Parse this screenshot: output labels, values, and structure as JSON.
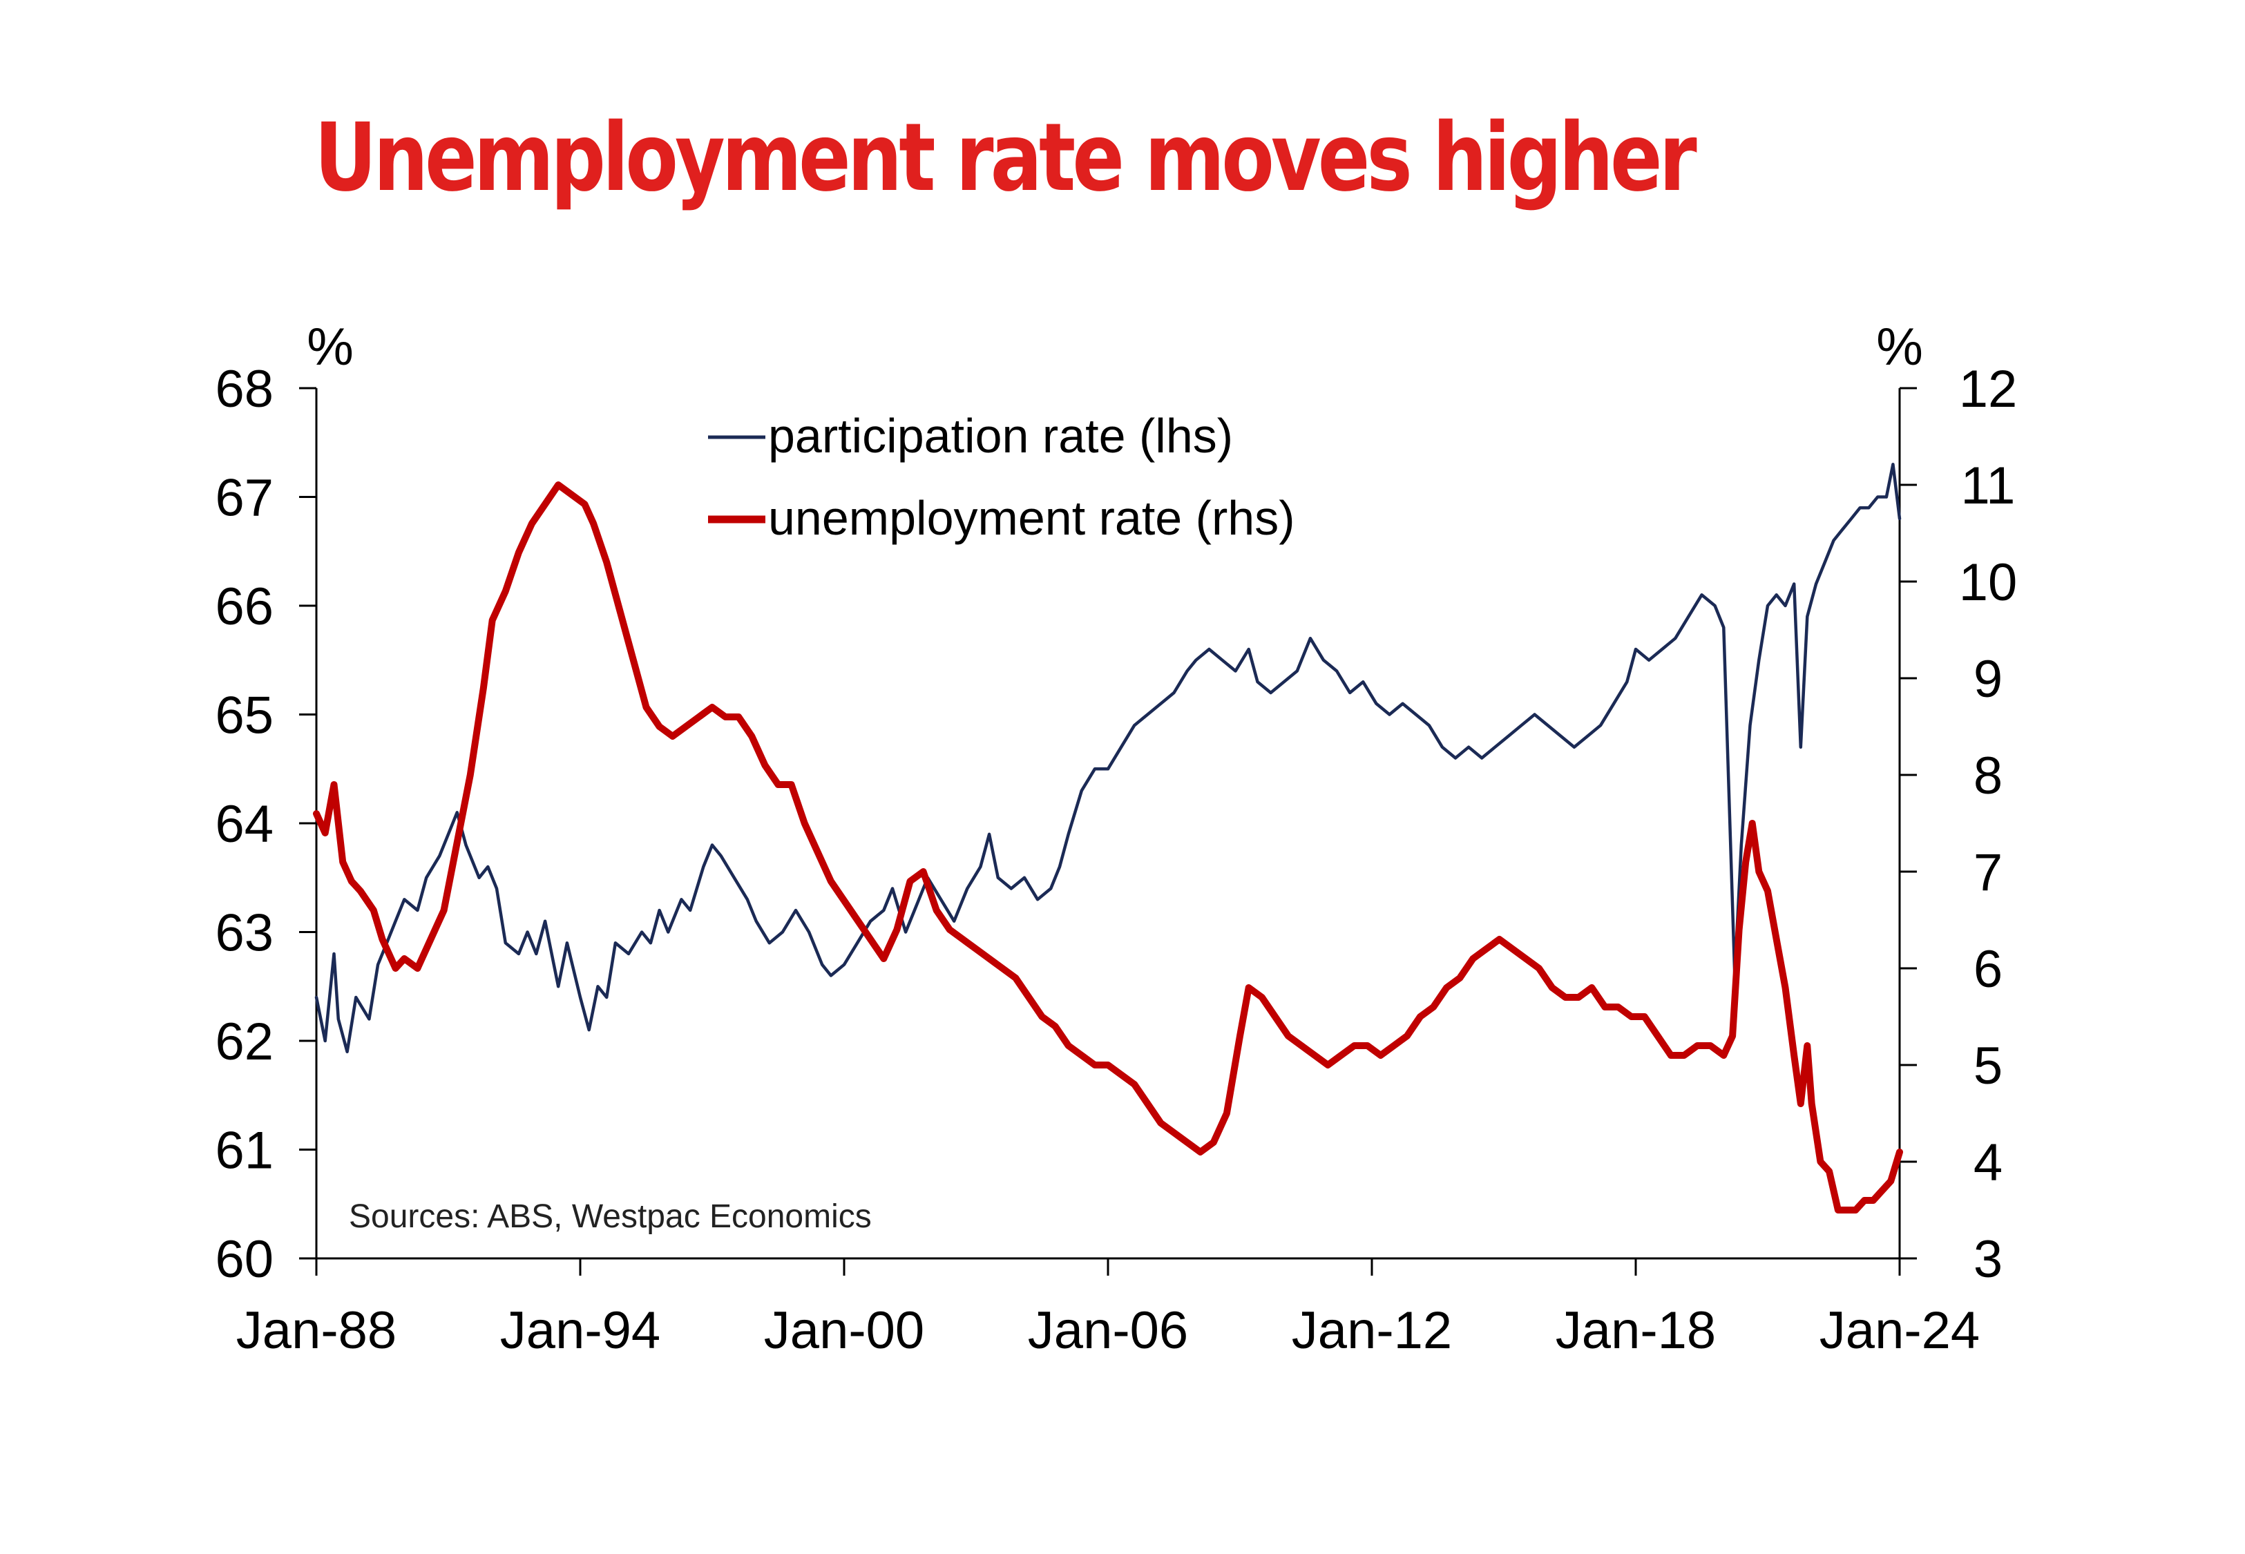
{
  "chart_data": {
    "type": "line",
    "title": "Unemployment rate moves higher",
    "left_axis_unit": "%",
    "right_axis_unit": "%",
    "x_ticks": [
      "Jan-88",
      "Jan-94",
      "Jan-00",
      "Jan-06",
      "Jan-12",
      "Jan-18",
      "Jan-24"
    ],
    "x_range": [
      1988.0,
      2024.0
    ],
    "ylim_left": [
      60,
      68
    ],
    "ylim_right": [
      3,
      12
    ],
    "y_ticks_left": [
      "60",
      "61",
      "62",
      "63",
      "64",
      "65",
      "66",
      "67",
      "68"
    ],
    "y_ticks_right": [
      "3",
      "4",
      "5",
      "6",
      "7",
      "8",
      "9",
      "10",
      "11",
      "12"
    ],
    "legend_position": "top-center",
    "source": "Sources: ABS, Westpac Economics",
    "series": [
      {
        "name": "participation rate (lhs)",
        "axis": "left",
        "color": "#1b2a55",
        "points": [
          [
            1988.0,
            62.4
          ],
          [
            1988.2,
            62.0
          ],
          [
            1988.4,
            62.8
          ],
          [
            1988.5,
            62.2
          ],
          [
            1988.7,
            61.9
          ],
          [
            1988.9,
            62.4
          ],
          [
            1989.2,
            62.2
          ],
          [
            1989.4,
            62.7
          ],
          [
            1989.6,
            62.9
          ],
          [
            1989.8,
            63.1
          ],
          [
            1990.0,
            63.3
          ],
          [
            1990.3,
            63.2
          ],
          [
            1990.5,
            63.5
          ],
          [
            1990.8,
            63.7
          ],
          [
            1991.0,
            63.9
          ],
          [
            1991.2,
            64.1
          ],
          [
            1991.4,
            63.8
          ],
          [
            1991.7,
            63.5
          ],
          [
            1991.9,
            63.6
          ],
          [
            1992.1,
            63.4
          ],
          [
            1992.3,
            62.9
          ],
          [
            1992.6,
            62.8
          ],
          [
            1992.8,
            63.0
          ],
          [
            1993.0,
            62.8
          ],
          [
            1993.2,
            63.1
          ],
          [
            1993.5,
            62.5
          ],
          [
            1993.7,
            62.9
          ],
          [
            1994.0,
            62.4
          ],
          [
            1994.2,
            62.1
          ],
          [
            1994.4,
            62.5
          ],
          [
            1994.6,
            62.4
          ],
          [
            1994.8,
            62.9
          ],
          [
            1995.1,
            62.8
          ],
          [
            1995.4,
            63.0
          ],
          [
            1995.6,
            62.9
          ],
          [
            1995.8,
            63.2
          ],
          [
            1996.0,
            63.0
          ],
          [
            1996.3,
            63.3
          ],
          [
            1996.5,
            63.2
          ],
          [
            1996.8,
            63.6
          ],
          [
            1997.0,
            63.8
          ],
          [
            1997.2,
            63.7
          ],
          [
            1997.5,
            63.5
          ],
          [
            1997.8,
            63.3
          ],
          [
            1998.0,
            63.1
          ],
          [
            1998.3,
            62.9
          ],
          [
            1998.6,
            63.0
          ],
          [
            1998.9,
            63.2
          ],
          [
            1999.2,
            63.0
          ],
          [
            1999.5,
            62.7
          ],
          [
            1999.7,
            62.6
          ],
          [
            2000.0,
            62.7
          ],
          [
            2000.3,
            62.9
          ],
          [
            2000.6,
            63.1
          ],
          [
            2000.9,
            63.2
          ],
          [
            2001.1,
            63.4
          ],
          [
            2001.4,
            63.0
          ],
          [
            2001.6,
            63.2
          ],
          [
            2001.9,
            63.5
          ],
          [
            2002.2,
            63.3
          ],
          [
            2002.5,
            63.1
          ],
          [
            2002.8,
            63.4
          ],
          [
            2003.1,
            63.6
          ],
          [
            2003.3,
            63.9
          ],
          [
            2003.5,
            63.5
          ],
          [
            2003.8,
            63.4
          ],
          [
            2004.1,
            63.5
          ],
          [
            2004.4,
            63.3
          ],
          [
            2004.7,
            63.4
          ],
          [
            2004.9,
            63.6
          ],
          [
            2005.1,
            63.9
          ],
          [
            2005.4,
            64.3
          ],
          [
            2005.7,
            64.5
          ],
          [
            2006.0,
            64.5
          ],
          [
            2006.3,
            64.7
          ],
          [
            2006.6,
            64.9
          ],
          [
            2006.9,
            65.0
          ],
          [
            2007.2,
            65.1
          ],
          [
            2007.5,
            65.2
          ],
          [
            2007.8,
            65.4
          ],
          [
            2008.0,
            65.5
          ],
          [
            2008.3,
            65.6
          ],
          [
            2008.6,
            65.5
          ],
          [
            2008.9,
            65.4
          ],
          [
            2009.2,
            65.6
          ],
          [
            2009.4,
            65.3
          ],
          [
            2009.7,
            65.2
          ],
          [
            2010.0,
            65.3
          ],
          [
            2010.3,
            65.4
          ],
          [
            2010.6,
            65.7
          ],
          [
            2010.9,
            65.5
          ],
          [
            2011.2,
            65.4
          ],
          [
            2011.5,
            65.2
          ],
          [
            2011.8,
            65.3
          ],
          [
            2012.1,
            65.1
          ],
          [
            2012.4,
            65.0
          ],
          [
            2012.7,
            65.1
          ],
          [
            2013.0,
            65.0
          ],
          [
            2013.3,
            64.9
          ],
          [
            2013.6,
            64.7
          ],
          [
            2013.9,
            64.6
          ],
          [
            2014.2,
            64.7
          ],
          [
            2014.5,
            64.6
          ],
          [
            2014.8,
            64.7
          ],
          [
            2015.1,
            64.8
          ],
          [
            2015.4,
            64.9
          ],
          [
            2015.7,
            65.0
          ],
          [
            2016.0,
            64.9
          ],
          [
            2016.3,
            64.8
          ],
          [
            2016.6,
            64.7
          ],
          [
            2016.9,
            64.8
          ],
          [
            2017.2,
            64.9
          ],
          [
            2017.5,
            65.1
          ],
          [
            2017.8,
            65.3
          ],
          [
            2018.0,
            65.6
          ],
          [
            2018.3,
            65.5
          ],
          [
            2018.6,
            65.6
          ],
          [
            2018.9,
            65.7
          ],
          [
            2019.2,
            65.9
          ],
          [
            2019.5,
            66.1
          ],
          [
            2019.8,
            66.0
          ],
          [
            2020.0,
            65.8
          ],
          [
            2020.25,
            62.6
          ],
          [
            2020.4,
            63.8
          ],
          [
            2020.6,
            64.9
          ],
          [
            2020.8,
            65.5
          ],
          [
            2021.0,
            66.0
          ],
          [
            2021.2,
            66.1
          ],
          [
            2021.4,
            66.0
          ],
          [
            2021.6,
            66.2
          ],
          [
            2021.75,
            64.7
          ],
          [
            2021.9,
            65.9
          ],
          [
            2022.1,
            66.2
          ],
          [
            2022.3,
            66.4
          ],
          [
            2022.5,
            66.6
          ],
          [
            2022.7,
            66.7
          ],
          [
            2022.9,
            66.8
          ],
          [
            2023.1,
            66.9
          ],
          [
            2023.3,
            66.9
          ],
          [
            2023.5,
            67.0
          ],
          [
            2023.7,
            67.0
          ],
          [
            2023.85,
            67.3
          ],
          [
            2024.0,
            66.8
          ]
        ]
      },
      {
        "name": "unemployment rate (rhs)",
        "axis": "right",
        "color": "#c00000",
        "points": [
          [
            1988.0,
            7.6
          ],
          [
            1988.2,
            7.4
          ],
          [
            1988.4,
            7.9
          ],
          [
            1988.6,
            7.1
          ],
          [
            1988.8,
            6.9
          ],
          [
            1989.0,
            6.8
          ],
          [
            1989.3,
            6.6
          ],
          [
            1989.5,
            6.3
          ],
          [
            1989.8,
            6.0
          ],
          [
            1990.0,
            6.1
          ],
          [
            1990.3,
            6.0
          ],
          [
            1990.6,
            6.3
          ],
          [
            1990.9,
            6.6
          ],
          [
            1991.2,
            7.3
          ],
          [
            1991.5,
            8.0
          ],
          [
            1991.8,
            8.9
          ],
          [
            1992.0,
            9.6
          ],
          [
            1992.3,
            9.9
          ],
          [
            1992.6,
            10.3
          ],
          [
            1992.9,
            10.6
          ],
          [
            1993.2,
            10.8
          ],
          [
            1993.5,
            11.0
          ],
          [
            1993.8,
            10.9
          ],
          [
            1994.1,
            10.8
          ],
          [
            1994.3,
            10.6
          ],
          [
            1994.6,
            10.2
          ],
          [
            1994.9,
            9.7
          ],
          [
            1995.2,
            9.2
          ],
          [
            1995.5,
            8.7
          ],
          [
            1995.8,
            8.5
          ],
          [
            1996.1,
            8.4
          ],
          [
            1996.4,
            8.5
          ],
          [
            1996.7,
            8.6
          ],
          [
            1997.0,
            8.7
          ],
          [
            1997.3,
            8.6
          ],
          [
            1997.6,
            8.6
          ],
          [
            1997.9,
            8.4
          ],
          [
            1998.2,
            8.1
          ],
          [
            1998.5,
            7.9
          ],
          [
            1998.8,
            7.9
          ],
          [
            1999.1,
            7.5
          ],
          [
            1999.4,
            7.2
          ],
          [
            1999.7,
            6.9
          ],
          [
            2000.0,
            6.7
          ],
          [
            2000.3,
            6.5
          ],
          [
            2000.6,
            6.3
          ],
          [
            2000.9,
            6.1
          ],
          [
            2001.2,
            6.4
          ],
          [
            2001.5,
            6.9
          ],
          [
            2001.8,
            7.0
          ],
          [
            2002.1,
            6.6
          ],
          [
            2002.4,
            6.4
          ],
          [
            2002.7,
            6.3
          ],
          [
            2003.0,
            6.2
          ],
          [
            2003.3,
            6.1
          ],
          [
            2003.6,
            6.0
          ],
          [
            2003.9,
            5.9
          ],
          [
            2004.2,
            5.7
          ],
          [
            2004.5,
            5.5
          ],
          [
            2004.8,
            5.4
          ],
          [
            2005.1,
            5.2
          ],
          [
            2005.4,
            5.1
          ],
          [
            2005.7,
            5.0
          ],
          [
            2006.0,
            5.0
          ],
          [
            2006.3,
            4.9
          ],
          [
            2006.6,
            4.8
          ],
          [
            2006.9,
            4.6
          ],
          [
            2007.2,
            4.4
          ],
          [
            2007.5,
            4.3
          ],
          [
            2007.8,
            4.2
          ],
          [
            2008.1,
            4.1
          ],
          [
            2008.4,
            4.2
          ],
          [
            2008.7,
            4.5
          ],
          [
            2009.0,
            5.3
          ],
          [
            2009.2,
            5.8
          ],
          [
            2009.5,
            5.7
          ],
          [
            2009.8,
            5.5
          ],
          [
            2010.1,
            5.3
          ],
          [
            2010.4,
            5.2
          ],
          [
            2010.7,
            5.1
          ],
          [
            2011.0,
            5.0
          ],
          [
            2011.3,
            5.1
          ],
          [
            2011.6,
            5.2
          ],
          [
            2011.9,
            5.2
          ],
          [
            2012.2,
            5.1
          ],
          [
            2012.5,
            5.2
          ],
          [
            2012.8,
            5.3
          ],
          [
            2013.1,
            5.5
          ],
          [
            2013.4,
            5.6
          ],
          [
            2013.7,
            5.8
          ],
          [
            2014.0,
            5.9
          ],
          [
            2014.3,
            6.1
          ],
          [
            2014.6,
            6.2
          ],
          [
            2014.9,
            6.3
          ],
          [
            2015.2,
            6.2
          ],
          [
            2015.5,
            6.1
          ],
          [
            2015.8,
            6.0
          ],
          [
            2016.1,
            5.8
          ],
          [
            2016.4,
            5.7
          ],
          [
            2016.7,
            5.7
          ],
          [
            2017.0,
            5.8
          ],
          [
            2017.3,
            5.6
          ],
          [
            2017.6,
            5.6
          ],
          [
            2017.9,
            5.5
          ],
          [
            2018.2,
            5.5
          ],
          [
            2018.5,
            5.3
          ],
          [
            2018.8,
            5.1
          ],
          [
            2019.1,
            5.1
          ],
          [
            2019.4,
            5.2
          ],
          [
            2019.7,
            5.2
          ],
          [
            2020.0,
            5.1
          ],
          [
            2020.2,
            5.3
          ],
          [
            2020.35,
            6.4
          ],
          [
            2020.5,
            7.1
          ],
          [
            2020.65,
            7.5
          ],
          [
            2020.8,
            7.0
          ],
          [
            2021.0,
            6.8
          ],
          [
            2021.2,
            6.3
          ],
          [
            2021.4,
            5.8
          ],
          [
            2021.6,
            5.1
          ],
          [
            2021.75,
            4.6
          ],
          [
            2021.9,
            5.2
          ],
          [
            2022.0,
            4.6
          ],
          [
            2022.2,
            4.0
          ],
          [
            2022.4,
            3.9
          ],
          [
            2022.6,
            3.5
          ],
          [
            2022.8,
            3.5
          ],
          [
            2023.0,
            3.5
          ],
          [
            2023.2,
            3.6
          ],
          [
            2023.4,
            3.6
          ],
          [
            2023.6,
            3.7
          ],
          [
            2023.8,
            3.8
          ],
          [
            2024.0,
            4.1
          ]
        ]
      }
    ]
  }
}
